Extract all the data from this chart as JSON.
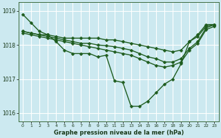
{
  "title": "Graphe pression niveau de la mer (hPa)",
  "bg_color": "#cce9f0",
  "grid_color": "#b0d8e0",
  "line_color": "#1e5c1e",
  "hours": [
    0,
    1,
    2,
    3,
    4,
    5,
    6,
    7,
    8,
    9,
    10,
    11,
    12,
    13,
    14,
    15,
    16,
    17,
    18,
    19,
    20,
    21,
    22,
    23
  ],
  "series": [
    [
      1018.9,
      1018.65,
      1018.4,
      1018.3,
      1018.1,
      1017.85,
      1017.75,
      1017.75,
      1017.75,
      1017.65,
      1017.7,
      1016.95,
      1016.9,
      1016.2,
      1016.2,
      1016.35,
      1016.6,
      1016.85,
      1017.0,
      1017.45,
      1018.1,
      1018.3,
      1018.6,
      1018.6
    ],
    [
      1018.4,
      1018.35,
      1018.3,
      1018.3,
      1018.25,
      1018.2,
      1018.2,
      1018.2,
      1018.2,
      1018.2,
      1018.15,
      1018.15,
      1018.1,
      1018.05,
      1018.0,
      1017.95,
      1017.9,
      1017.85,
      1017.8,
      1017.85,
      1018.1,
      1018.25,
      1018.55,
      1018.6
    ],
    [
      1018.4,
      1018.35,
      1018.3,
      1018.25,
      1018.2,
      1018.15,
      1018.1,
      1018.05,
      1018.05,
      1018.0,
      1017.98,
      1017.95,
      1017.9,
      1017.85,
      1017.75,
      1017.65,
      1017.6,
      1017.5,
      1017.5,
      1017.6,
      1017.9,
      1018.1,
      1018.5,
      1018.6
    ],
    [
      1018.35,
      1018.3,
      1018.25,
      1018.2,
      1018.15,
      1018.1,
      1018.05,
      1018.0,
      1017.95,
      1017.9,
      1017.85,
      1017.8,
      1017.75,
      1017.7,
      1017.6,
      1017.5,
      1017.4,
      1017.35,
      1017.4,
      1017.5,
      1017.85,
      1018.05,
      1018.45,
      1018.55
    ]
  ],
  "ylim": [
    1015.75,
    1019.25
  ],
  "yticks": [
    1016,
    1017,
    1018,
    1019
  ],
  "xlim": [
    -0.5,
    23.5
  ],
  "markersize": 2.5,
  "linewidth": 1.0
}
